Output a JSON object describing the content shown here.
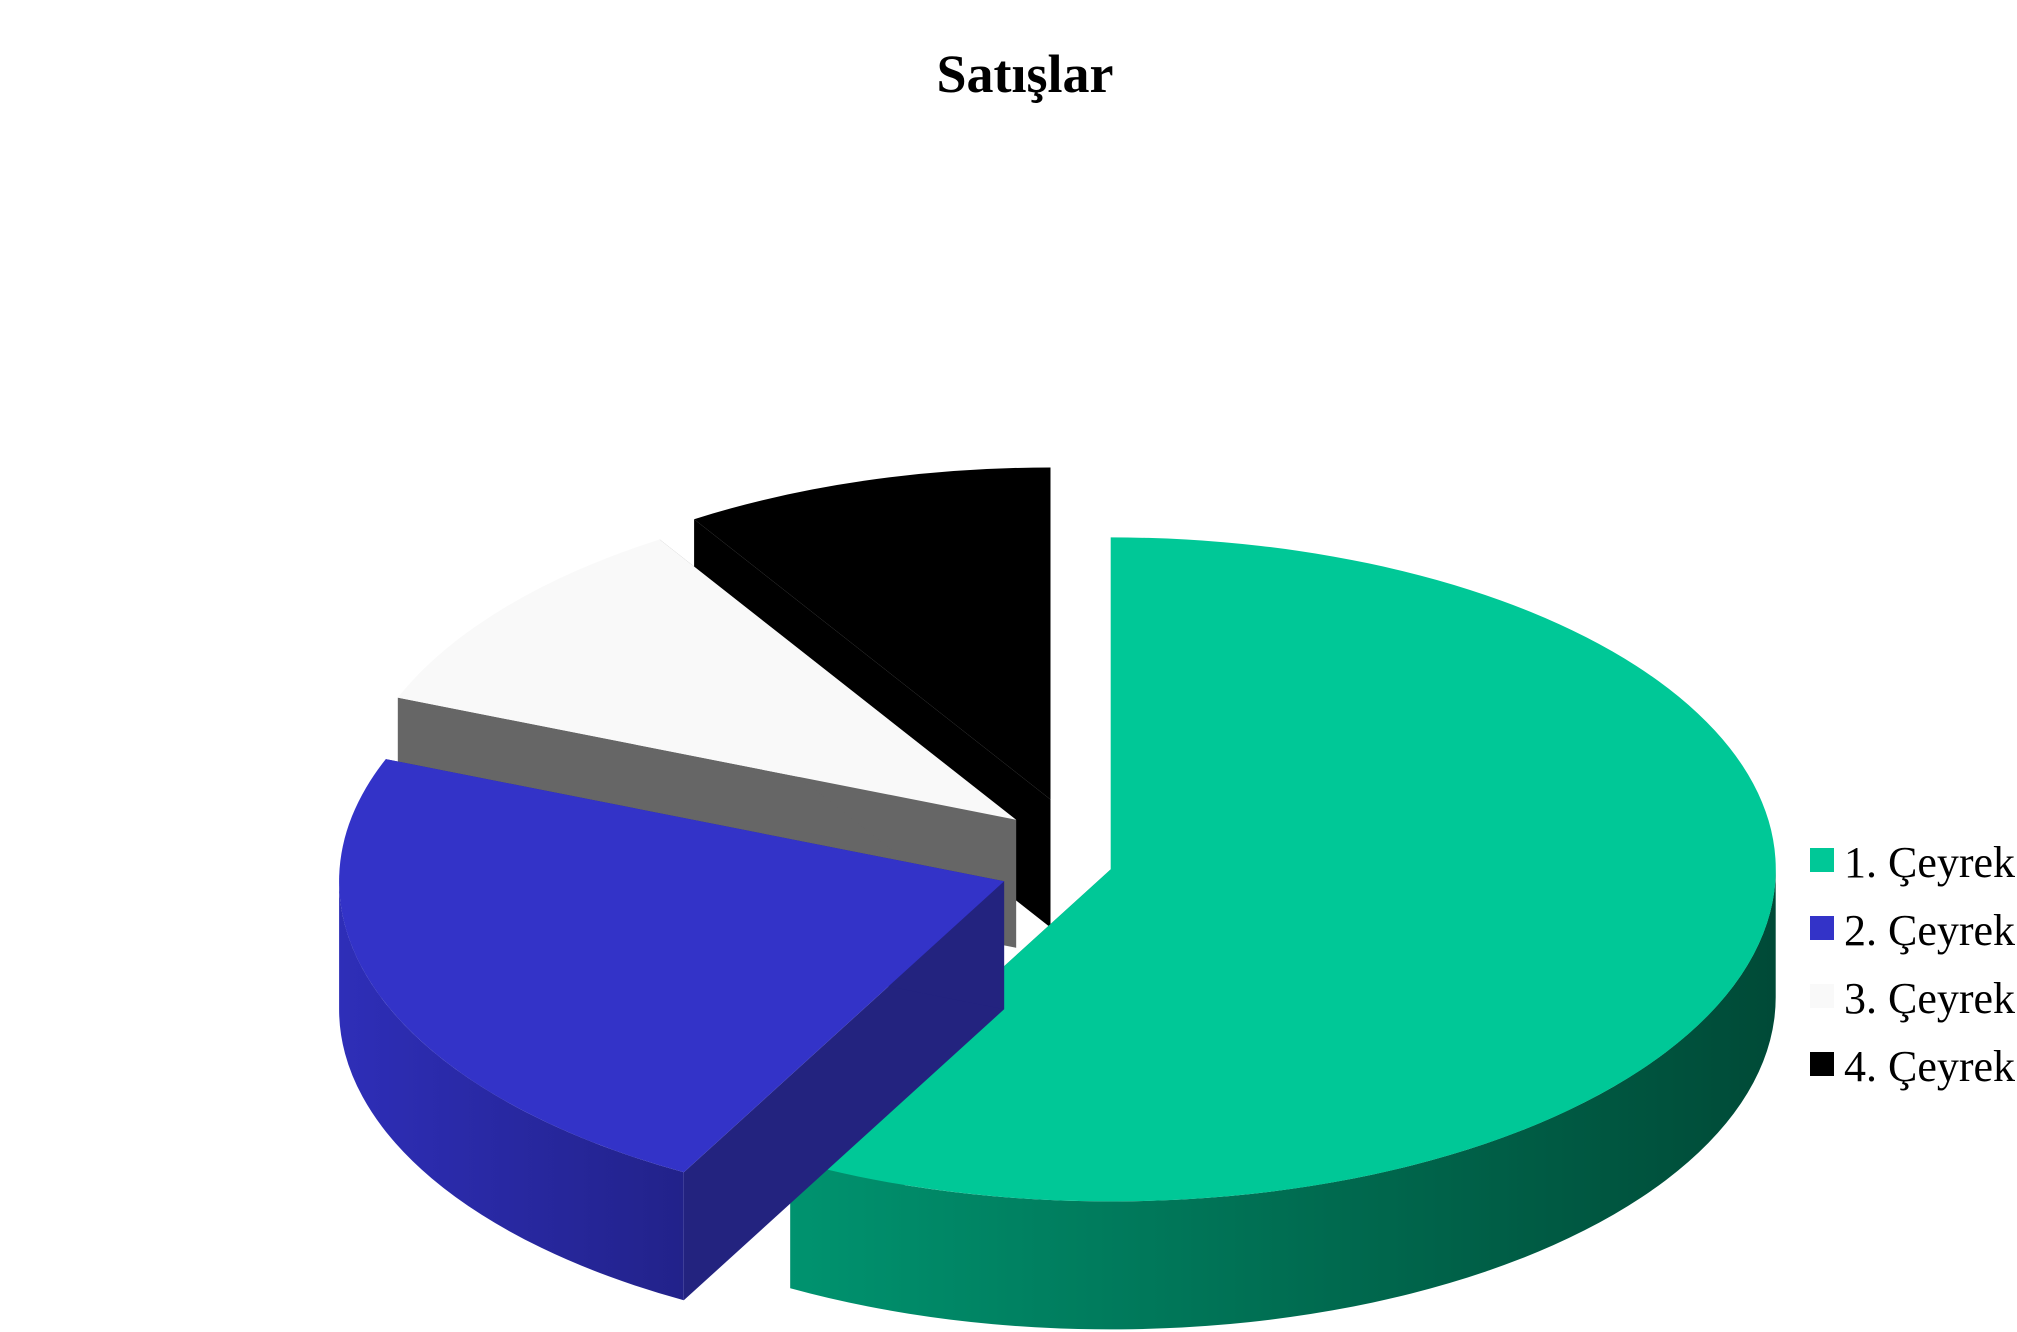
{
  "chart_data": {
    "type": "pie",
    "style": "3d-exploded",
    "title": "Satışlar",
    "categories": [
      "1. Çeyrek",
      "2. Çeyrek",
      "3. Çeyrek",
      "4. Çeyrek"
    ],
    "values": [
      58,
      23,
      10,
      9
    ],
    "colors": [
      "#00C897",
      "#3333C8",
      "#F9F9F9",
      "#000000"
    ],
    "side_colors": [
      "#007D5E",
      "#23237F",
      "#666666",
      "#000000"
    ],
    "legend": {
      "position": "right",
      "entries": [
        "1. Çeyrek",
        "2. Çeyrek",
        "3. Çeyrek",
        "4. Çeyrek"
      ]
    }
  }
}
